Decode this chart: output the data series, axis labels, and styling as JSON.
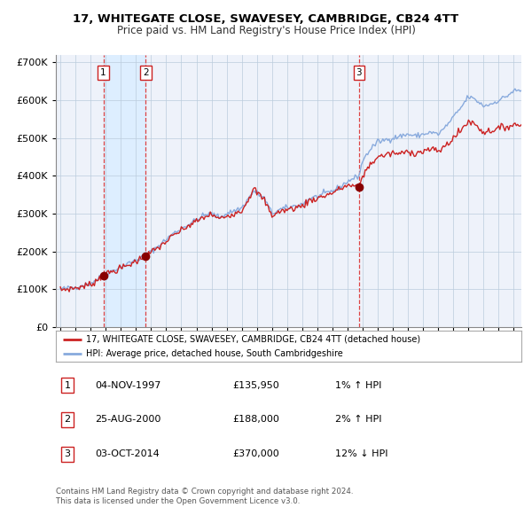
{
  "title": "17, WHITEGATE CLOSE, SWAVESEY, CAMBRIDGE, CB24 4TT",
  "subtitle": "Price paid vs. HM Land Registry's House Price Index (HPI)",
  "legend_line1": "17, WHITEGATE CLOSE, SWAVESEY, CAMBRIDGE, CB24 4TT (detached house)",
  "legend_line2": "HPI: Average price, detached house, South Cambridgeshire",
  "footer1": "Contains HM Land Registry data © Crown copyright and database right 2024.",
  "footer2": "This data is licensed under the Open Government Licence v3.0.",
  "transactions": [
    {
      "label": "1",
      "date_dec": 1997.843,
      "price": 135950
    },
    {
      "label": "2",
      "date_dec": 2000.646,
      "price": 188000
    },
    {
      "label": "3",
      "date_dec": 2014.753,
      "price": 370000
    }
  ],
  "table_rows": [
    {
      "label": "1",
      "date": "04-NOV-1997",
      "price": "£135,950",
      "change": "1% ↑ HPI"
    },
    {
      "label": "2",
      "date": "25-AUG-2000",
      "price": "£188,000",
      "change": "2% ↑ HPI"
    },
    {
      "label": "3",
      "date": "03-OCT-2014",
      "price": "£370,000",
      "change": "12% ↓ HPI"
    }
  ],
  "hpi_color": "#88aadd",
  "price_color": "#cc2222",
  "dot_color": "#880000",
  "vline_color": "#dd4444",
  "shade_color": "#ddeeff",
  "grid_color": "#bbccdd",
  "bg_color": "#eef2fa",
  "legend_border": "#aaaaaa",
  "ylim": [
    0,
    720000
  ],
  "yticks": [
    0,
    100000,
    200000,
    300000,
    400000,
    500000,
    600000,
    700000
  ],
  "xlim_start": 1994.7,
  "xlim_end": 2025.5,
  "title_fontsize": 9.5,
  "subtitle_fontsize": 8.5,
  "tick_fontsize": 7.5,
  "ytick_fontsize": 8
}
